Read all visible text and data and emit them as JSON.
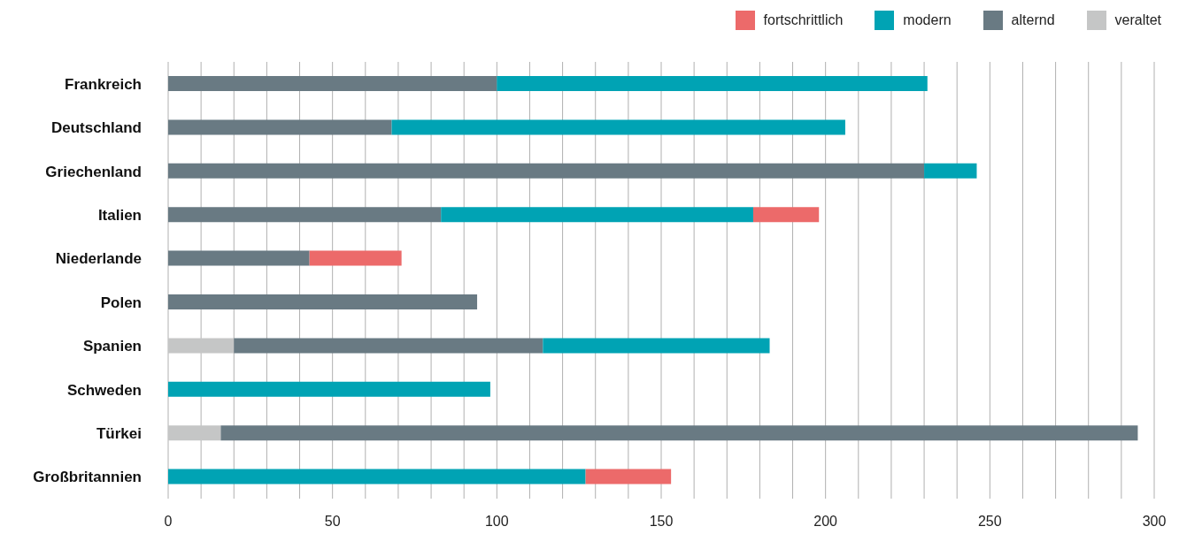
{
  "chart_data": {
    "type": "bar",
    "orientation": "horizontal",
    "stacked": true,
    "categories": [
      "Frankreich",
      "Deutschland",
      "Griechenland",
      "Italien",
      "Niederlande",
      "Polen",
      "Spanien",
      "Schweden",
      "Türkei",
      "Großbritannien"
    ],
    "series": [
      {
        "name": "veraltet",
        "color": "#c5c6c6",
        "values": [
          null,
          null,
          null,
          null,
          null,
          null,
          20,
          null,
          16,
          null
        ]
      },
      {
        "name": "alternd",
        "color": "#697a83",
        "values": [
          100,
          68,
          230,
          83,
          43,
          94,
          94,
          null,
          279,
          null
        ]
      },
      {
        "name": "modern",
        "color": "#00a3b4",
        "values": [
          131,
          138,
          16,
          95,
          null,
          null,
          69,
          98,
          null,
          127
        ]
      },
      {
        "name": "fortschrittlich",
        "color": "#ec6a6a",
        "values": [
          null,
          null,
          null,
          20,
          28,
          null,
          null,
          null,
          null,
          26
        ]
      }
    ],
    "xlim": [
      0,
      300
    ],
    "xticks": [
      0,
      {
        "value": 10,
        "label": null
      },
      {
        "value": 20,
        "label": null
      },
      {
        "value": 30,
        "label": null
      },
      {
        "value": 40,
        "label": null
      },
      50,
      {
        "value": 60,
        "label": null
      },
      {
        "value": 70,
        "label": null
      },
      {
        "value": 80,
        "label": null
      },
      {
        "value": 90,
        "label": null
      },
      100,
      {
        "value": 110,
        "label": null
      },
      {
        "value": 120,
        "label": null
      },
      {
        "value": 130,
        "label": null
      },
      {
        "value": 140,
        "label": null
      },
      150,
      {
        "value": 160,
        "label": null
      },
      {
        "value": 170,
        "label": null
      },
      {
        "value": 180,
        "label": null
      },
      {
        "value": 190,
        "label": null
      },
      200,
      {
        "value": 210,
        "label": null
      },
      {
        "value": 220,
        "label": null
      },
      {
        "value": 230,
        "label": null
      },
      {
        "value": 240,
        "label": null
      },
      250,
      {
        "value": 260,
        "label": null
      },
      {
        "value": 270,
        "label": null
      },
      {
        "value": 280,
        "label": null
      },
      {
        "value": 290,
        "label": null
      },
      300
    ],
    "grid": "x",
    "legend": "top right"
  }
}
